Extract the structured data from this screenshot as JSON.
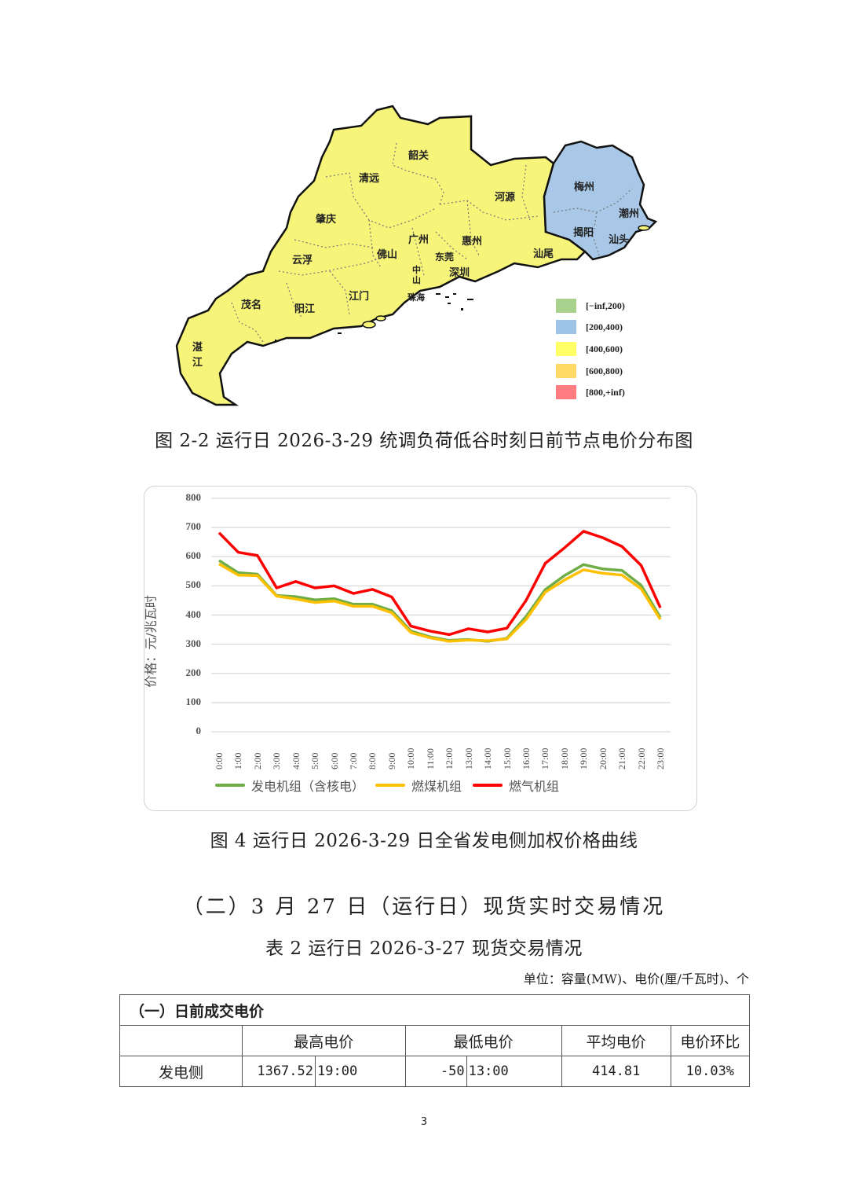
{
  "map_figure": {
    "caption": "图 2-2 运行日 2026-3-29 统调负荷低谷时刻日前节点电价分布图",
    "regions": [
      {
        "name": "韶关",
        "price_band": "[400,600)"
      },
      {
        "name": "清远",
        "price_band": "[400,600)"
      },
      {
        "name": "河源",
        "price_band": "[400,600)"
      },
      {
        "name": "梅州",
        "price_band": "[200,400)"
      },
      {
        "name": "潮州",
        "price_band": "[200,400)"
      },
      {
        "name": "揭阳",
        "price_band": "[200,400)"
      },
      {
        "name": "汕头",
        "price_band": "[200,400)"
      },
      {
        "name": "肇庆",
        "price_band": "[400,600)"
      },
      {
        "name": "广州",
        "price_band": "[400,600)"
      },
      {
        "name": "惠州",
        "price_band": "[400,600)"
      },
      {
        "name": "汕尾",
        "price_band": "[400,600)"
      },
      {
        "name": "云浮",
        "price_band": "[400,600)"
      },
      {
        "name": "佛山",
        "price_band": "[400,600)"
      },
      {
        "name": "东莞",
        "price_band": "[400,600)"
      },
      {
        "name": "深圳",
        "price_band": "[400,600)"
      },
      {
        "name": "中山",
        "price_band": "[400,600)"
      },
      {
        "name": "珠海",
        "price_band": "[400,600)"
      },
      {
        "name": "茂名",
        "price_band": "[400,600)"
      },
      {
        "name": "阳江",
        "price_band": "[400,600)"
      },
      {
        "name": "江门",
        "price_band": "[400,600)"
      },
      {
        "name": "湛江",
        "price_band": "[400,600)"
      }
    ],
    "legend": [
      {
        "label": "[−inf,200)",
        "color": "#a9d18e"
      },
      {
        "label": "[200,400)",
        "color": "#9dc3e6"
      },
      {
        "label": "[400,600)",
        "color": "#ffff66"
      },
      {
        "label": "[600,800)",
        "color": "#ffd966"
      },
      {
        "label": "[800,+inf)",
        "color": "#ff7c80"
      }
    ],
    "colors": {
      "yellow": "#f7f47a",
      "blue": "#a9c8e8"
    }
  },
  "chart_figure": {
    "caption": "图 4 运行日 2026-3-29 日全省发电侧加权价格曲线"
  },
  "chart_data": {
    "type": "line",
    "title": "",
    "xlabel": "",
    "ylabel": "价格：元/兆瓦时",
    "ylim": [
      0,
      800
    ],
    "yticks": [
      0,
      100,
      200,
      300,
      400,
      500,
      600,
      700,
      800
    ],
    "grid": true,
    "legend_position": "bottom",
    "categories": [
      "0:00",
      "1:00",
      "2:00",
      "3:00",
      "4:00",
      "5:00",
      "6:00",
      "7:00",
      "8:00",
      "9:00",
      "10:00",
      "11:00",
      "12:00",
      "13:00",
      "14:00",
      "15:00",
      "16:00",
      "17:00",
      "18:00",
      "19:00",
      "20:00",
      "21:00",
      "22:00",
      "23:00"
    ],
    "series": [
      {
        "name": "发电机组（含核电）",
        "color": "#70ad47",
        "values": [
          587,
          545,
          540,
          467,
          463,
          452,
          456,
          437,
          437,
          415,
          345,
          325,
          313,
          316,
          310,
          320,
          395,
          487,
          535,
          573,
          558,
          553,
          502,
          392
        ]
      },
      {
        "name": "燃煤机组",
        "color": "#ffc000",
        "values": [
          575,
          537,
          535,
          465,
          455,
          443,
          448,
          430,
          430,
          408,
          340,
          322,
          310,
          314,
          312,
          318,
          385,
          478,
          520,
          555,
          543,
          537,
          490,
          385
        ]
      },
      {
        "name": "燃气机组",
        "color": "#ff0000",
        "values": [
          682,
          615,
          604,
          493,
          515,
          493,
          500,
          474,
          488,
          462,
          362,
          345,
          333,
          353,
          342,
          355,
          450,
          577,
          630,
          687,
          665,
          635,
          570,
          425
        ]
      }
    ]
  },
  "section": {
    "title": "（二）3 月 27 日（运行日）现货实时交易情况",
    "table_caption": "表 2 运行日 2026-3-27 现货交易情况",
    "unit_note": "单位：容量(MW)、电价(厘/千瓦时)、个"
  },
  "table": {
    "group_header": "（一）日前成交电价",
    "headers": [
      "",
      "最高电价",
      "最低电价",
      "平均电价",
      "电价环比"
    ],
    "rows": [
      {
        "label": "发电侧",
        "max_price": "1367.52",
        "max_time": "19:00",
        "min_price": "-50",
        "min_time": "13:00",
        "avg_price": "414.81",
        "change": "10.03%"
      }
    ]
  },
  "page": {
    "number": "3"
  }
}
